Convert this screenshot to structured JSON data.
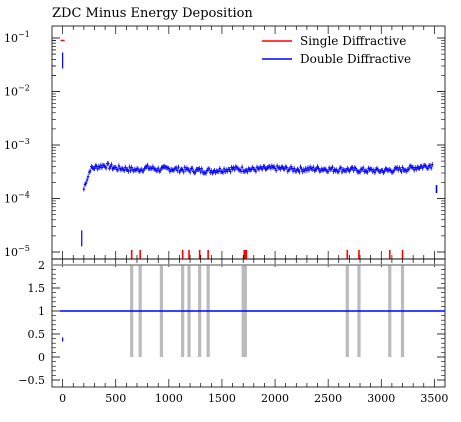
{
  "chart_data": {
    "type": "scatter",
    "title": "ZDC Minus Energy Deposition",
    "xlim": [
      -100,
      3600
    ],
    "x_ticks": [
      0,
      500,
      1000,
      1500,
      2000,
      2500,
      3000,
      3500
    ],
    "x_tick_labels": [
      "0",
      "500",
      "1000",
      "1500",
      "2000",
      "2500",
      "3000",
      "3500"
    ],
    "legend_position": "top-right",
    "panels": [
      {
        "name": "main",
        "yscale": "log",
        "ylim": [
          1e-05,
          0.12
        ],
        "y_ticks": [
          1e-05,
          0.0001,
          0.001,
          0.01,
          0.1
        ],
        "y_tick_labels": [
          {
            "base": "10",
            "exp": "−5"
          },
          {
            "base": "10",
            "exp": "−4"
          },
          {
            "base": "10",
            "exp": "−3"
          },
          {
            "base": "10",
            "exp": "−2"
          },
          {
            "base": "10",
            "exp": "−1"
          }
        ],
        "series": [
          {
            "name": "Single Diffractive",
            "color": "#ff0000",
            "points": [
              [
                0,
                0.09
              ]
            ],
            "below_range_bins": [
              650,
              730,
              1130,
              1190,
              1290,
              1370,
              1710,
              1720,
              1730,
              2680,
              2790,
              3080,
              3200
            ]
          },
          {
            "name": "Double Diffractive",
            "color": "#0000ff",
            "points": [
              [
                0,
                0.038
              ],
              [
                180,
                1.8e-05
              ],
              [
                200,
                0.00015
              ],
              [
                220,
                0.00021
              ],
              [
                240,
                0.00026
              ],
              [
                260,
                0.00036
              ],
              [
                300,
                0.00038
              ],
              [
                400,
                0.00042
              ],
              [
                500,
                0.00037
              ],
              [
                600,
                0.00036
              ],
              [
                700,
                0.00034
              ],
              [
                800,
                0.00038
              ],
              [
                900,
                0.00035
              ],
              [
                1000,
                0.00036
              ],
              [
                1200,
                0.00034
              ],
              [
                1400,
                0.00033
              ],
              [
                1600,
                0.00036
              ],
              [
                1800,
                0.00035
              ],
              [
                2000,
                0.00037
              ],
              [
                2200,
                0.00035
              ],
              [
                2400,
                0.00036
              ],
              [
                2600,
                0.00035
              ],
              [
                2800,
                0.00034
              ],
              [
                3000,
                0.00033
              ],
              [
                3200,
                0.00035
              ],
              [
                3400,
                0.0004
              ],
              [
                3480,
                0.00042
              ],
              [
                3520,
                0.00015
              ]
            ]
          }
        ]
      },
      {
        "name": "ratio",
        "yscale": "linear",
        "ylim": [
          -0.5,
          2
        ],
        "y_ticks": [
          -0.5,
          0,
          0.5,
          1,
          1.5,
          2
        ],
        "y_tick_labels": [
          "−0.5",
          "0",
          "0.5",
          "1",
          "1.5",
          "2"
        ],
        "reference_line": 1,
        "dropout_bins": [
          650,
          730,
          930,
          1130,
          1190,
          1290,
          1370,
          1700,
          1720,
          2680,
          2790,
          3080,
          3200
        ],
        "points": [
          [
            0,
            0.38
          ]
        ]
      }
    ]
  }
}
